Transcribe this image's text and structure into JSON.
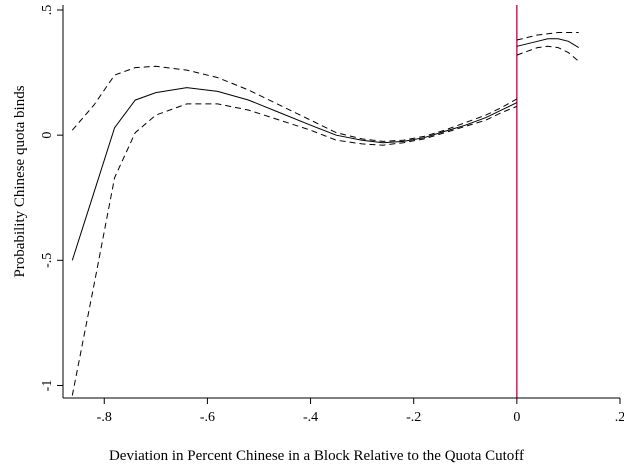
{
  "chart_data": {
    "type": "line",
    "title": "",
    "xlabel": "Deviation in Percent Chinese in a Block Relative to the Quota Cutoff",
    "ylabel": "Probability Chinese quota binds",
    "xlim": [
      -0.88,
      0.2
    ],
    "ylim": [
      -1.05,
      0.52
    ],
    "xticks": [
      {
        "value": -0.8,
        "label": "-.8"
      },
      {
        "value": -0.6,
        "label": "-.6"
      },
      {
        "value": -0.4,
        "label": "-.4"
      },
      {
        "value": -0.2,
        "label": "-.2"
      },
      {
        "value": 0,
        "label": "0"
      },
      {
        "value": 0.2,
        "label": ".2"
      }
    ],
    "yticks": [
      {
        "value": -1,
        "label": "-1"
      },
      {
        "value": -0.5,
        "label": "-.5"
      },
      {
        "value": 0,
        "label": "0"
      },
      {
        "value": 0.5,
        "label": ".5"
      }
    ],
    "grid": false,
    "legend": "none",
    "cutoff_line": {
      "x": 0,
      "color": "#cc2255"
    },
    "series": [
      {
        "style": "solid",
        "x": [
          -0.862,
          -0.82,
          -0.78,
          -0.74,
          -0.7,
          -0.64,
          -0.58,
          -0.52,
          -0.46,
          -0.4,
          -0.35,
          -0.3,
          -0.26,
          -0.22,
          -0.18,
          -0.14,
          -0.1,
          -0.06,
          -0.03,
          0
        ],
        "y": [
          -0.5,
          -0.23,
          0.03,
          0.14,
          0.17,
          0.19,
          0.175,
          0.14,
          0.09,
          0.04,
          0.0,
          -0.02,
          -0.03,
          -0.025,
          -0.01,
          0.015,
          0.04,
          0.07,
          0.1,
          0.13
        ]
      },
      {
        "style": "dashed",
        "x": [
          -0.862,
          -0.82,
          -0.78,
          -0.74,
          -0.7,
          -0.64,
          -0.58,
          -0.52,
          -0.46,
          -0.4,
          -0.35,
          -0.3,
          -0.26,
          -0.22,
          -0.18,
          -0.14,
          -0.1,
          -0.06,
          -0.03,
          0
        ],
        "y": [
          0.02,
          0.12,
          0.24,
          0.27,
          0.275,
          0.26,
          0.23,
          0.18,
          0.12,
          0.06,
          0.01,
          -0.015,
          -0.025,
          -0.02,
          -0.005,
          0.02,
          0.05,
          0.08,
          0.11,
          0.145
        ]
      },
      {
        "style": "dashed",
        "x": [
          -0.862,
          -0.82,
          -0.78,
          -0.74,
          -0.7,
          -0.64,
          -0.58,
          -0.52,
          -0.46,
          -0.4,
          -0.35,
          -0.3,
          -0.26,
          -0.22,
          -0.18,
          -0.14,
          -0.1,
          -0.06,
          -0.03,
          0
        ],
        "y": [
          -1.04,
          -0.6,
          -0.17,
          0.01,
          0.08,
          0.125,
          0.125,
          0.1,
          0.06,
          0.02,
          -0.02,
          -0.035,
          -0.04,
          -0.03,
          -0.015,
          0.01,
          0.035,
          0.06,
          0.09,
          0.115
        ]
      },
      {
        "style": "solid",
        "x": [
          0,
          0.02,
          0.04,
          0.06,
          0.08,
          0.1,
          0.12
        ],
        "y": [
          0.355,
          0.365,
          0.375,
          0.385,
          0.385,
          0.375,
          0.35
        ]
      },
      {
        "style": "dashed",
        "x": [
          0,
          0.02,
          0.04,
          0.06,
          0.08,
          0.1,
          0.12
        ],
        "y": [
          0.38,
          0.39,
          0.4,
          0.405,
          0.41,
          0.41,
          0.41
        ]
      },
      {
        "style": "dashed",
        "x": [
          0,
          0.02,
          0.04,
          0.06,
          0.08,
          0.1,
          0.12
        ],
        "y": [
          0.32,
          0.335,
          0.35,
          0.355,
          0.35,
          0.33,
          0.295
        ]
      }
    ]
  }
}
